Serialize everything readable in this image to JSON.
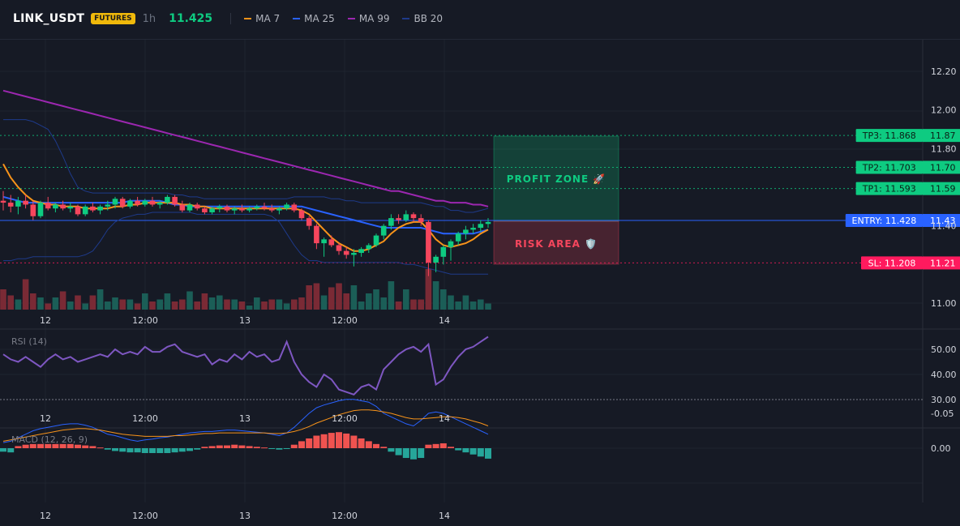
{
  "header": {
    "symbol": "LINK_USDT",
    "badge": "FUTURES",
    "timeframe": "1h",
    "last_price": "11.425",
    "legend": [
      {
        "label": "MA 7",
        "color": "#f7931a"
      },
      {
        "label": "MA 25",
        "color": "#2962ff"
      },
      {
        "label": "MA 99",
        "color": "#9c27b0"
      },
      {
        "label": "BB 20",
        "color": "#1e3a8a"
      }
    ]
  },
  "colors": {
    "up": "#0ecb81",
    "down": "#f6465d",
    "vol_up": "#1b5e57",
    "vol_down": "#7a2a35",
    "ma7": "#f7931a",
    "ma25": "#2962ff",
    "ma99": "#9c27b0",
    "bb": "#1e3a8a",
    "rsi": "#7e57c2",
    "macd_line": "#2962ff",
    "signal_line": "#f7931a",
    "tp": "#0ecb81",
    "sl": "#ff1a5e",
    "entry": "#2962ff"
  },
  "chart_data": [
    {
      "type": "candlestick",
      "title": "LINK_USDT",
      "x_tick_labels": [
        "12",
        "12:00",
        "13",
        "12:00",
        "14"
      ],
      "y_ticks": [
        "12.20",
        "12.00",
        "11.80",
        "11.40",
        "11.00"
      ],
      "ylim": [
        11.0,
        12.2
      ],
      "ohlc": [
        [
          11.53,
          11.58,
          11.48,
          11.52
        ],
        [
          11.52,
          11.56,
          11.47,
          11.5
        ],
        [
          11.5,
          11.55,
          11.46,
          11.53
        ],
        [
          11.53,
          11.56,
          11.49,
          11.51
        ],
        [
          11.51,
          11.53,
          11.43,
          11.45
        ],
        [
          11.45,
          11.53,
          11.44,
          11.52
        ],
        [
          11.52,
          11.55,
          11.48,
          11.49
        ],
        [
          11.49,
          11.52,
          11.47,
          11.51
        ],
        [
          11.51,
          11.53,
          11.48,
          11.49
        ],
        [
          11.49,
          11.52,
          11.47,
          11.5
        ],
        [
          11.5,
          11.51,
          11.45,
          11.46
        ],
        [
          11.46,
          11.51,
          11.45,
          11.5
        ],
        [
          11.5,
          11.52,
          11.47,
          11.48
        ],
        [
          11.48,
          11.51,
          11.46,
          11.5
        ],
        [
          11.5,
          11.53,
          11.48,
          11.51
        ],
        [
          11.51,
          11.55,
          11.49,
          11.54
        ],
        [
          11.54,
          11.55,
          11.49,
          11.5
        ],
        [
          11.5,
          11.54,
          11.49,
          11.53
        ],
        [
          11.53,
          11.55,
          11.5,
          11.51
        ],
        [
          11.51,
          11.54,
          11.5,
          11.53
        ],
        [
          11.53,
          11.55,
          11.5,
          11.51
        ],
        [
          11.51,
          11.53,
          11.49,
          11.52
        ],
        [
          11.52,
          11.56,
          11.51,
          11.55
        ],
        [
          11.55,
          11.56,
          11.5,
          11.51
        ],
        [
          11.51,
          11.53,
          11.47,
          11.48
        ],
        [
          11.48,
          11.52,
          11.47,
          11.51
        ],
        [
          11.51,
          11.52,
          11.48,
          11.49
        ],
        [
          11.49,
          11.5,
          11.46,
          11.47
        ],
        [
          11.47,
          11.5,
          11.46,
          11.49
        ],
        [
          11.49,
          11.51,
          11.47,
          11.5
        ],
        [
          11.5,
          11.51,
          11.47,
          11.48
        ],
        [
          11.48,
          11.5,
          11.46,
          11.49
        ],
        [
          11.49,
          11.51,
          11.47,
          11.48
        ],
        [
          11.48,
          11.5,
          11.47,
          11.49
        ],
        [
          11.49,
          11.51,
          11.48,
          11.5
        ],
        [
          11.5,
          11.52,
          11.48,
          11.49
        ],
        [
          11.49,
          11.51,
          11.47,
          11.48
        ],
        [
          11.48,
          11.5,
          11.46,
          11.49
        ],
        [
          11.49,
          11.52,
          11.48,
          11.51
        ],
        [
          11.51,
          11.52,
          11.47,
          11.48
        ],
        [
          11.48,
          11.49,
          11.43,
          11.44
        ],
        [
          11.44,
          11.45,
          11.38,
          11.4
        ],
        [
          11.4,
          11.41,
          11.28,
          11.31
        ],
        [
          11.31,
          11.34,
          11.24,
          11.33
        ],
        [
          11.33,
          11.35,
          11.29,
          11.3
        ],
        [
          11.3,
          11.31,
          11.25,
          11.27
        ],
        [
          11.27,
          11.29,
          11.23,
          11.25
        ],
        [
          11.25,
          11.28,
          11.19,
          11.26
        ],
        [
          11.26,
          11.29,
          11.24,
          11.28
        ],
        [
          11.28,
          11.31,
          11.26,
          11.3
        ],
        [
          11.3,
          11.36,
          11.29,
          11.35
        ],
        [
          11.35,
          11.41,
          11.33,
          11.4
        ],
        [
          11.4,
          11.46,
          11.38,
          11.44
        ],
        [
          11.44,
          11.46,
          11.41,
          11.43
        ],
        [
          11.43,
          11.48,
          11.42,
          11.46
        ],
        [
          11.46,
          11.47,
          11.42,
          11.44
        ],
        [
          11.44,
          11.46,
          11.4,
          11.42
        ],
        [
          11.42,
          11.43,
          11.14,
          11.21
        ],
        [
          11.21,
          11.25,
          11.16,
          11.24
        ],
        [
          11.24,
          11.3,
          11.2,
          11.29
        ],
        [
          11.29,
          11.33,
          11.22,
          11.32
        ],
        [
          11.32,
          11.37,
          11.3,
          11.36
        ],
        [
          11.36,
          11.4,
          11.33,
          11.38
        ],
        [
          11.38,
          11.41,
          11.36,
          11.39
        ],
        [
          11.39,
          11.43,
          11.37,
          11.41
        ],
        [
          11.41,
          11.44,
          11.39,
          11.42
        ]
      ],
      "volume": [
        10,
        7,
        5,
        15,
        8,
        6,
        3,
        6,
        9,
        4,
        7,
        3,
        7,
        10,
        4,
        6,
        5,
        5,
        3,
        8,
        4,
        5,
        8,
        4,
        5,
        9,
        4,
        8,
        6,
        7,
        5,
        5,
        4,
        2,
        6,
        4,
        5,
        5,
        3,
        5,
        6,
        12,
        13,
        7,
        11,
        13,
        8,
        12,
        4,
        8,
        10,
        6,
        14,
        4,
        10,
        5,
        5,
        20,
        14,
        10,
        7,
        4,
        7,
        4,
        5,
        3
      ],
      "ma7": [
        11.72,
        11.65,
        11.6,
        11.56,
        11.53,
        11.52,
        11.51,
        11.51,
        11.5,
        11.5,
        11.5,
        11.49,
        11.49,
        11.49,
        11.49,
        11.5,
        11.5,
        11.51,
        11.51,
        11.52,
        11.52,
        11.52,
        11.52,
        11.52,
        11.51,
        11.51,
        11.5,
        11.5,
        11.49,
        11.49,
        11.49,
        11.49,
        11.49,
        11.49,
        11.49,
        11.49,
        11.49,
        11.49,
        11.49,
        11.49,
        11.48,
        11.46,
        11.42,
        11.38,
        11.34,
        11.31,
        11.29,
        11.27,
        11.27,
        11.28,
        11.3,
        11.32,
        11.36,
        11.39,
        11.41,
        11.42,
        11.42,
        11.38,
        11.33,
        11.3,
        11.29,
        11.3,
        11.31,
        11.33,
        11.36,
        11.38
      ],
      "ma25": [
        11.55,
        11.54,
        11.53,
        11.52,
        11.52,
        11.52,
        11.52,
        11.52,
        11.52,
        11.52,
        11.52,
        11.52,
        11.52,
        11.52,
        11.52,
        11.52,
        11.52,
        11.53,
        11.53,
        11.53,
        11.53,
        11.53,
        11.52,
        11.51,
        11.51,
        11.5,
        11.5,
        11.5,
        11.5,
        11.5,
        11.5,
        11.5,
        11.5,
        11.5,
        11.5,
        11.5,
        11.5,
        11.5,
        11.5,
        11.5,
        11.5,
        11.49,
        11.48,
        11.47,
        11.46,
        11.45,
        11.44,
        11.43,
        11.42,
        11.41,
        11.4,
        11.39,
        11.39,
        11.39,
        11.39,
        11.39,
        11.39,
        11.38,
        11.37,
        11.36,
        11.36,
        11.36,
        11.36,
        11.36,
        11.37,
        11.38
      ],
      "ma99": [
        12.1,
        12.09,
        12.08,
        12.07,
        12.06,
        12.05,
        12.04,
        12.03,
        12.02,
        12.01,
        12.0,
        11.99,
        11.98,
        11.97,
        11.96,
        11.95,
        11.94,
        11.93,
        11.92,
        11.91,
        11.9,
        11.89,
        11.88,
        11.87,
        11.86,
        11.85,
        11.84,
        11.83,
        11.82,
        11.81,
        11.8,
        11.79,
        11.78,
        11.77,
        11.76,
        11.75,
        11.74,
        11.73,
        11.72,
        11.71,
        11.7,
        11.69,
        11.68,
        11.67,
        11.66,
        11.65,
        11.64,
        11.63,
        11.62,
        11.61,
        11.6,
        11.59,
        11.58,
        11.58,
        11.57,
        11.56,
        11.55,
        11.54,
        11.53,
        11.53,
        11.52,
        11.52,
        11.52,
        11.51,
        11.51,
        11.5
      ],
      "bb_upper": [
        11.95,
        11.95,
        11.95,
        11.95,
        11.94,
        11.92,
        11.9,
        11.84,
        11.76,
        11.67,
        11.6,
        11.58,
        11.57,
        11.57,
        11.57,
        11.57,
        11.57,
        11.57,
        11.57,
        11.57,
        11.57,
        11.57,
        11.57,
        11.56,
        11.56,
        11.55,
        11.55,
        11.54,
        11.54,
        11.54,
        11.54,
        11.54,
        11.54,
        11.54,
        11.54,
        11.54,
        11.54,
        11.54,
        11.54,
        11.55,
        11.55,
        11.55,
        11.55,
        11.55,
        11.54,
        11.54,
        11.53,
        11.53,
        11.52,
        11.52,
        11.52,
        11.52,
        11.52,
        11.52,
        11.52,
        11.52,
        11.52,
        11.51,
        11.5,
        11.5,
        11.48,
        11.48,
        11.47,
        11.47,
        11.48,
        11.49
      ],
      "bb_lower": [
        11.22,
        11.22,
        11.23,
        11.23,
        11.24,
        11.24,
        11.24,
        11.24,
        11.24,
        11.24,
        11.24,
        11.25,
        11.27,
        11.32,
        11.38,
        11.42,
        11.44,
        11.45,
        11.46,
        11.46,
        11.47,
        11.47,
        11.47,
        11.47,
        11.47,
        11.47,
        11.46,
        11.46,
        11.46,
        11.46,
        11.46,
        11.46,
        11.46,
        11.46,
        11.46,
        11.46,
        11.45,
        11.42,
        11.36,
        11.3,
        11.25,
        11.22,
        11.22,
        11.21,
        11.21,
        11.21,
        11.21,
        11.21,
        11.21,
        11.21,
        11.21,
        11.21,
        11.21,
        11.21,
        11.2,
        11.2,
        11.19,
        11.18,
        11.17,
        11.16,
        11.15,
        11.15,
        11.15,
        11.15,
        11.15,
        11.15
      ]
    },
    {
      "type": "line",
      "title": "RSI (14)",
      "x_tick_labels": [
        "12",
        "12:00",
        "13",
        "12:00",
        "14"
      ],
      "y_ticks": [
        "50.00",
        "40.00",
        "30.00"
      ],
      "ylim": [
        28,
        56
      ],
      "values": [
        48,
        46,
        45,
        47,
        45,
        43,
        46,
        48,
        46,
        47,
        45,
        46,
        47,
        48,
        47,
        50,
        48,
        49,
        48,
        51,
        49,
        49,
        51,
        52,
        49,
        48,
        47,
        48,
        44,
        46,
        45,
        48,
        46,
        49,
        47,
        48,
        45,
        46,
        53,
        45,
        40,
        37,
        35,
        40,
        38,
        34,
        33,
        32,
        35,
        36,
        34,
        42,
        45,
        48,
        50,
        51,
        49,
        52,
        36,
        38,
        43,
        47,
        50,
        51,
        53,
        55
      ]
    },
    {
      "type": "bar",
      "title": "MACD (12, 26, 9)",
      "x_tick_labels": [
        "12",
        "12:00",
        "13",
        "12:00",
        "14"
      ],
      "y_ticks": [
        "0.00",
        "-0.05"
      ],
      "ylim": [
        -0.08,
        0.02
      ],
      "histogram": [
        0.005,
        0.006,
        -0.003,
        -0.005,
        -0.006,
        -0.006,
        -0.006,
        -0.006,
        -0.006,
        -0.006,
        -0.005,
        -0.004,
        -0.003,
        -0.001,
        0.002,
        0.004,
        0.005,
        0.006,
        0.006,
        0.007,
        0.007,
        0.007,
        0.007,
        0.006,
        0.005,
        0.004,
        0.002,
        -0.002,
        -0.003,
        -0.004,
        -0.004,
        -0.005,
        -0.004,
        -0.003,
        -0.002,
        -0.001,
        0.001,
        0.002,
        0.001,
        -0.005,
        -0.01,
        -0.014,
        -0.018,
        -0.02,
        -0.022,
        -0.023,
        -0.021,
        -0.018,
        -0.014,
        -0.01,
        -0.006,
        -0.002,
        0.005,
        0.01,
        0.014,
        0.016,
        0.014,
        -0.005,
        -0.006,
        -0.007,
        -0.002,
        0.003,
        0.006,
        0.009,
        0.012,
        0.015
      ],
      "macd": [
        -0.008,
        -0.01,
        -0.015,
        -0.02,
        -0.025,
        -0.028,
        -0.03,
        -0.032,
        -0.034,
        -0.035,
        -0.035,
        -0.033,
        -0.03,
        -0.025,
        -0.02,
        -0.018,
        -0.015,
        -0.012,
        -0.01,
        -0.012,
        -0.013,
        -0.015,
        -0.016,
        -0.018,
        -0.02,
        -0.022,
        -0.023,
        -0.024,
        -0.024,
        -0.025,
        -0.026,
        -0.026,
        -0.025,
        -0.024,
        -0.023,
        -0.022,
        -0.02,
        -0.018,
        -0.022,
        -0.03,
        -0.04,
        -0.05,
        -0.058,
        -0.062,
        -0.065,
        -0.068,
        -0.07,
        -0.07,
        -0.068,
        -0.066,
        -0.06,
        -0.05,
        -0.045,
        -0.04,
        -0.035,
        -0.032,
        -0.04,
        -0.05,
        -0.052,
        -0.05,
        -0.045,
        -0.04,
        -0.035,
        -0.03,
        -0.025,
        -0.02
      ],
      "signal": [
        -0.01,
        -0.012,
        -0.014,
        -0.016,
        -0.018,
        -0.02,
        -0.022,
        -0.024,
        -0.026,
        -0.027,
        -0.028,
        -0.028,
        -0.027,
        -0.026,
        -0.024,
        -0.022,
        -0.02,
        -0.019,
        -0.018,
        -0.017,
        -0.017,
        -0.017,
        -0.017,
        -0.018,
        -0.018,
        -0.019,
        -0.02,
        -0.021,
        -0.021,
        -0.022,
        -0.022,
        -0.022,
        -0.022,
        -0.022,
        -0.022,
        -0.022,
        -0.021,
        -0.021,
        -0.022,
        -0.024,
        -0.027,
        -0.031,
        -0.036,
        -0.04,
        -0.044,
        -0.048,
        -0.051,
        -0.054,
        -0.055,
        -0.055,
        -0.054,
        -0.052,
        -0.05,
        -0.047,
        -0.044,
        -0.042,
        -0.042,
        -0.043,
        -0.044,
        -0.045,
        -0.045,
        -0.044,
        -0.042,
        -0.039,
        -0.036,
        -0.032
      ]
    }
  ],
  "trade_levels": [
    {
      "label": "TP3: 11.868",
      "axis": "11.87",
      "price": 11.868,
      "kind": "tp"
    },
    {
      "label": "TP2: 11.703",
      "axis": "11.70",
      "price": 11.703,
      "kind": "tp"
    },
    {
      "label": "TP1: 11.593",
      "axis": "11.59",
      "price": 11.593,
      "kind": "tp"
    },
    {
      "label": "ENTRY: 11.428",
      "axis": "11.43",
      "price": 11.428,
      "kind": "entry"
    },
    {
      "label": "SL: 11.208",
      "axis": "11.21",
      "price": 11.208,
      "kind": "sl"
    }
  ],
  "zones": {
    "profit": "PROFIT ZONE 🚀",
    "risk": "RISK AREA 🛡️"
  }
}
